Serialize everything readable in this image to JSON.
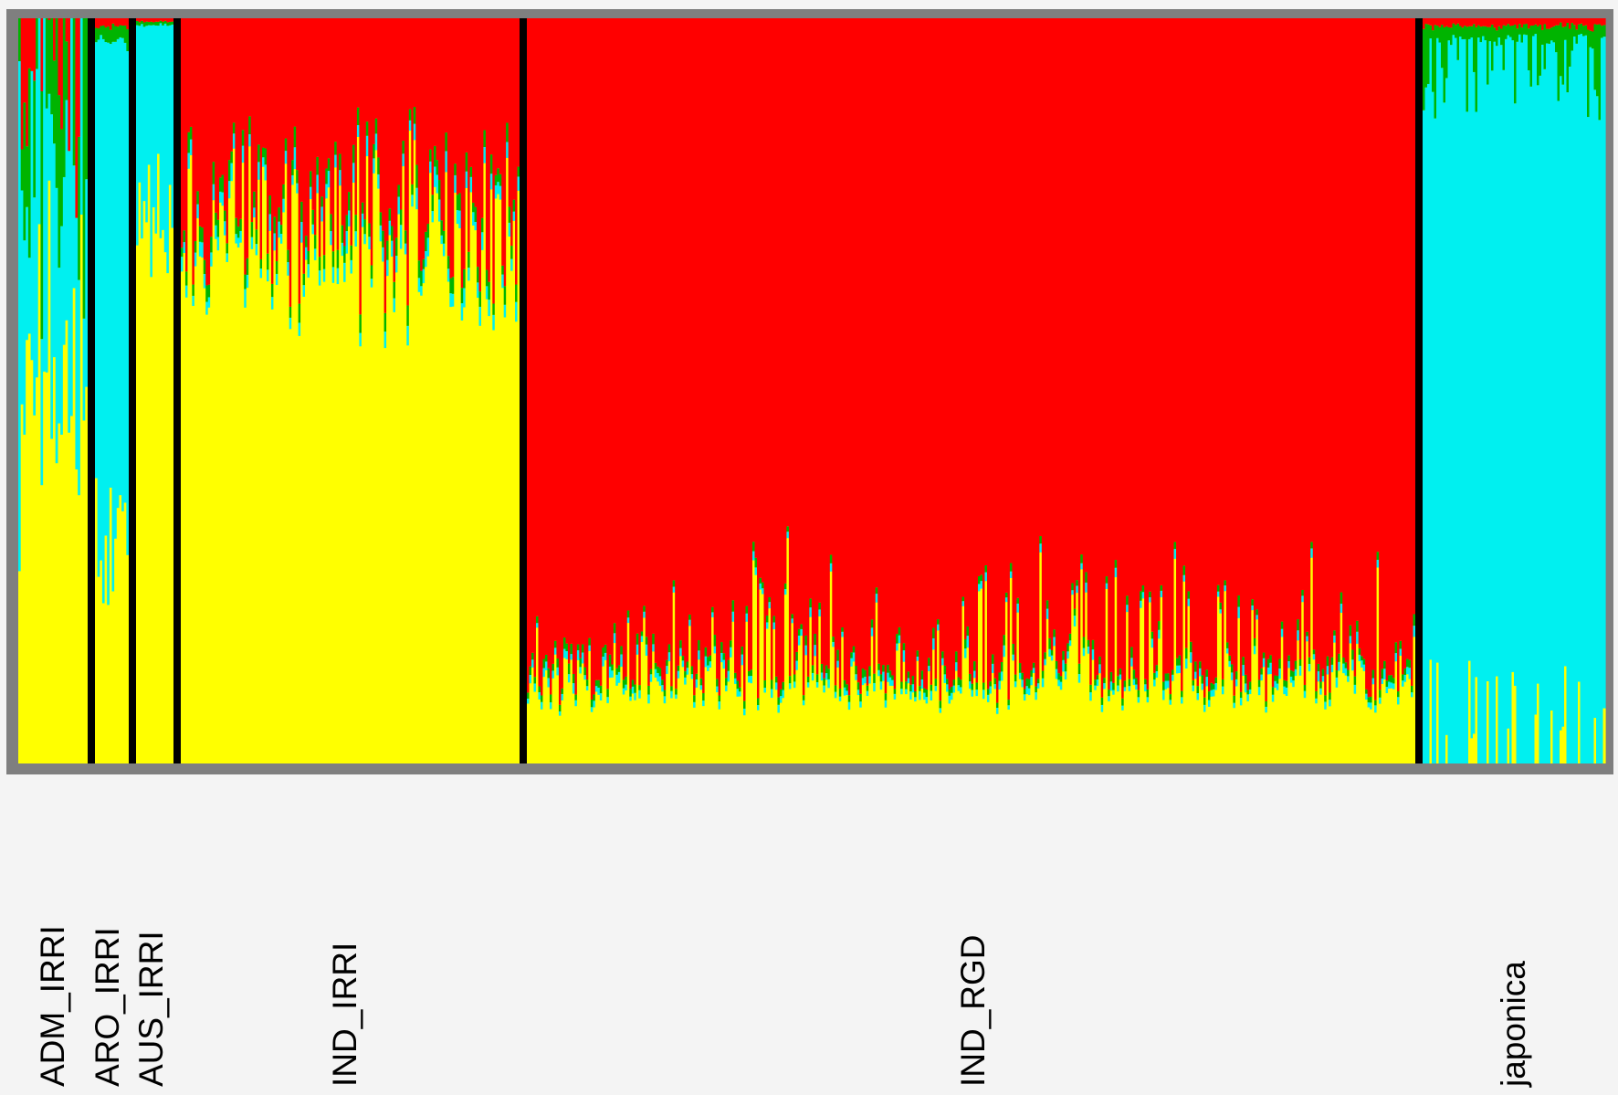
{
  "chart_data": {
    "type": "bar",
    "stacked": true,
    "normalized": true,
    "ylim": [
      0,
      1
    ],
    "grid": false,
    "legend": "none",
    "cluster_colors": {
      "cluster_yellow": "#ffff00",
      "cluster_cyan": "#00f0f0",
      "cluster_green": "#00b400",
      "cluster_red": "#ff0000"
    },
    "stack_order": [
      "cluster_yellow",
      "cluster_cyan",
      "cluster_green",
      "cluster_red"
    ],
    "frame_color": "#7f7f7f",
    "separator_color": "#000000",
    "groups": [
      {
        "name": "ADM_IRRI",
        "bars": 28,
        "mean_composition": {
          "cluster_yellow": 0.45,
          "cluster_cyan": 0.32,
          "cluster_green": 0.15,
          "cluster_red": 0.08
        }
      },
      {
        "name": "ARO_IRRI",
        "bars": 14,
        "mean_composition": {
          "cluster_yellow": 0.3,
          "cluster_cyan": 0.67,
          "cluster_green": 0.02,
          "cluster_red": 0.01
        }
      },
      {
        "name": "AUS_IRRI",
        "bars": 16,
        "mean_composition": {
          "cluster_yellow": 0.72,
          "cluster_cyan": 0.27,
          "cluster_green": 0.005,
          "cluster_red": 0.005
        }
      },
      {
        "name": "IND_IRRI",
        "bars": 150,
        "mean_composition": {
          "cluster_yellow": 0.72,
          "cluster_cyan": 0.02,
          "cluster_green": 0.02,
          "cluster_red": 0.24
        }
      },
      {
        "name": "IND_RGD",
        "bars": 390,
        "mean_composition": {
          "cluster_yellow": 0.08,
          "cluster_cyan": 0.01,
          "cluster_green": 0.01,
          "cluster_red": 0.9
        }
      },
      {
        "name": "japonica",
        "bars": 80,
        "mean_composition": {
          "cluster_yellow": 0.03,
          "cluster_cyan": 0.92,
          "cluster_green": 0.04,
          "cluster_red": 0.01
        }
      }
    ],
    "labels": [
      "ADM_IRRI",
      "ARO_IRRI",
      "AUS_IRRI",
      "IND_IRRI",
      "IND_RGD",
      "japonica"
    ]
  }
}
